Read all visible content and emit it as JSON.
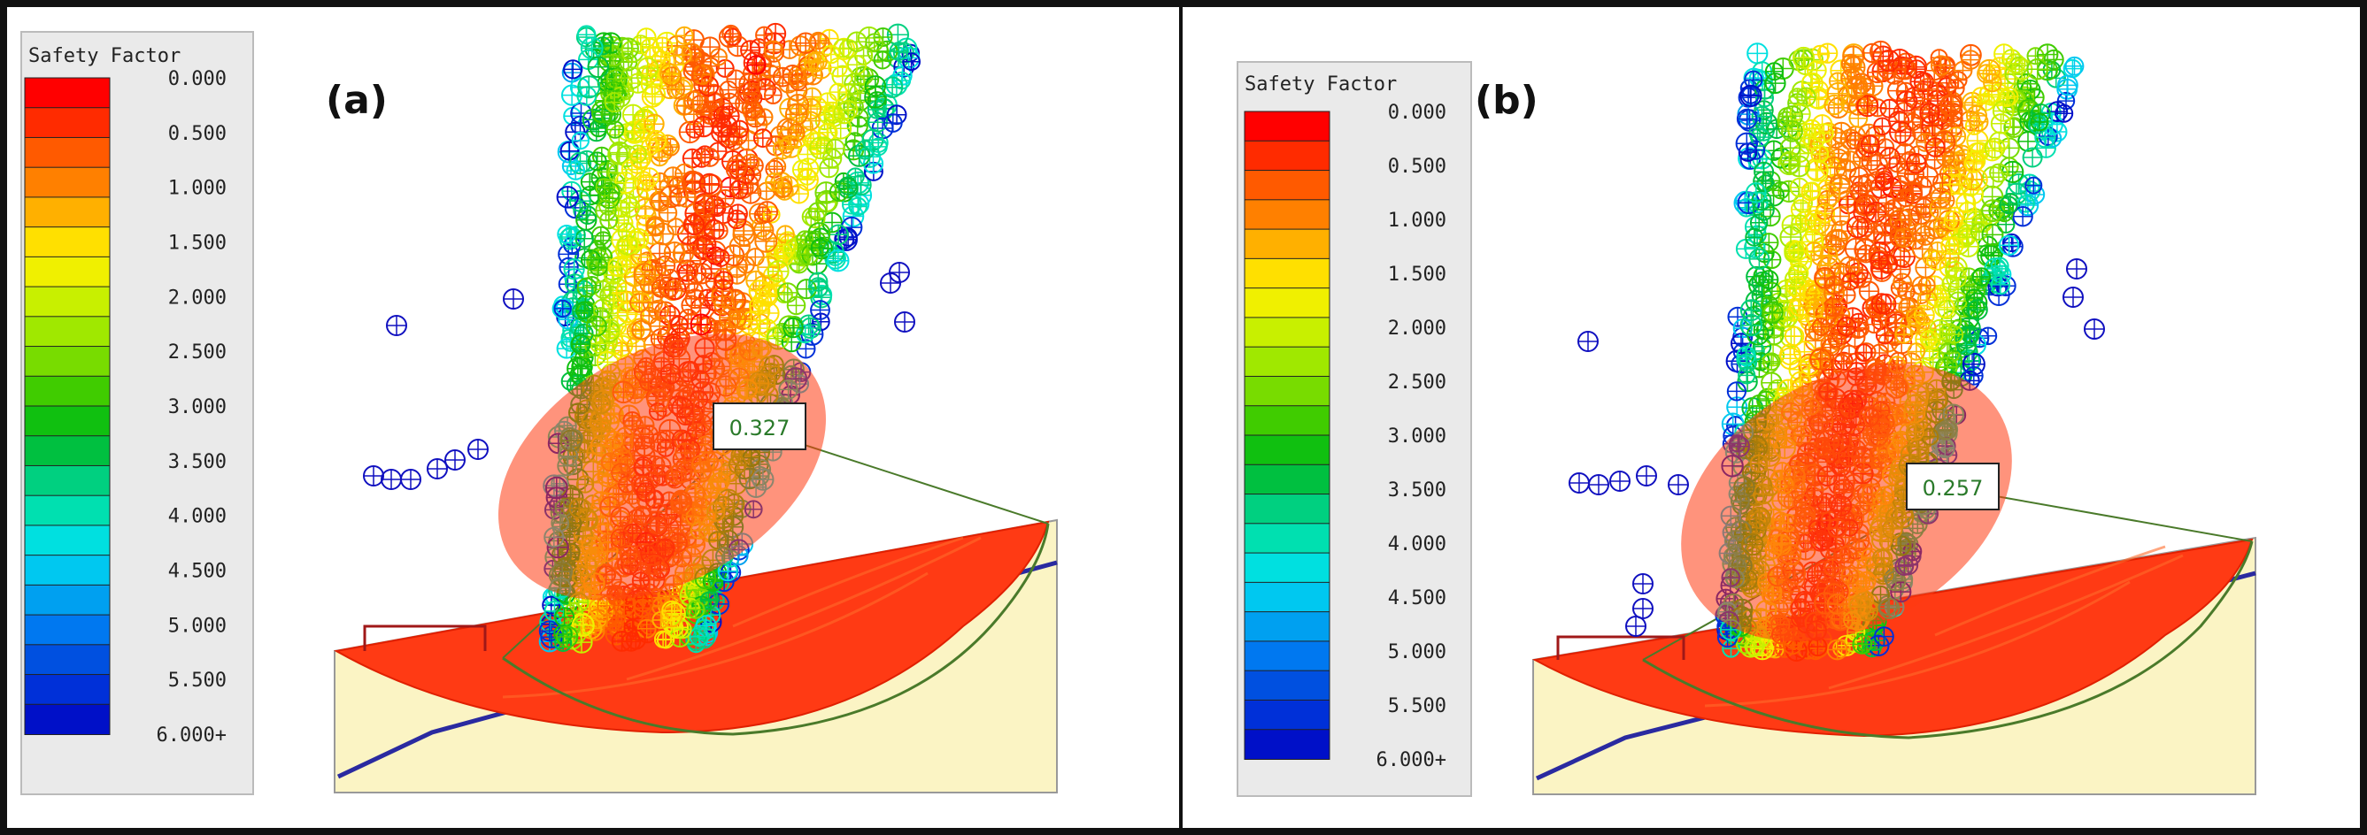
{
  "legend": {
    "title": "Safety Factor",
    "ticks": [
      "0.000",
      "0.500",
      "1.000",
      "1.500",
      "2.000",
      "2.500",
      "3.000",
      "3.500",
      "4.000",
      "4.500",
      "5.000",
      "5.500",
      "6.000+"
    ],
    "colors": [
      "#ff0000",
      "#ff2b00",
      "#ff5a00",
      "#ff8000",
      "#ffb000",
      "#ffe000",
      "#f0f000",
      "#c8f000",
      "#a0e800",
      "#78dc00",
      "#40cc00",
      "#10c010",
      "#00c040",
      "#00d080",
      "#00e0b0",
      "#00e0e0",
      "#00c8f0",
      "#00a0f0",
      "#0078f0",
      "#0050e0",
      "#0030d8",
      "#0010c8"
    ]
  },
  "panels": [
    {
      "id": "a",
      "label": "(a)",
      "safety_factor_label": "0.327"
    },
    {
      "id": "b",
      "label": "(b)",
      "safety_factor_label": "0.257"
    }
  ]
}
